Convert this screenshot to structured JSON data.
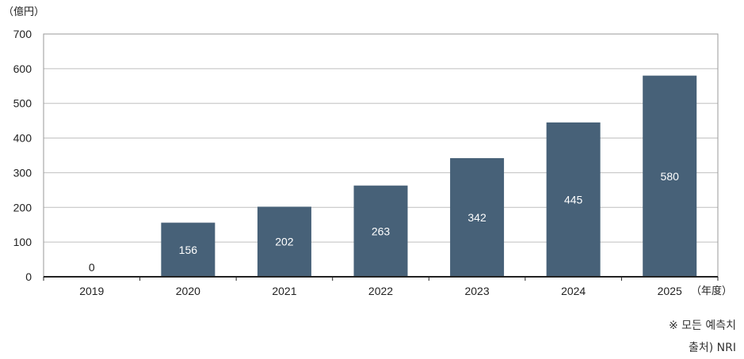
{
  "chart_data": {
    "type": "bar",
    "y_unit_label": "（億円）",
    "x_unit_label": "（年度）",
    "categories": [
      "2019",
      "2020",
      "2021",
      "2022",
      "2023",
      "2024",
      "2025"
    ],
    "values": [
      0,
      156,
      202,
      263,
      342,
      445,
      580
    ],
    "ylim": [
      0,
      700
    ],
    "yticks": [
      0,
      100,
      200,
      300,
      400,
      500,
      600,
      700
    ],
    "grid": true,
    "colors": {
      "bar": "#476178",
      "bar_label_inside": "#ffffff",
      "bar_label_outside": "#222222",
      "grid": "#bfbfbf",
      "axis": "#222222",
      "frame": "#9a9a9a"
    }
  },
  "notes": {
    "forecast_note": "※ 모든 예측치",
    "source_note": "출처) NRI"
  }
}
